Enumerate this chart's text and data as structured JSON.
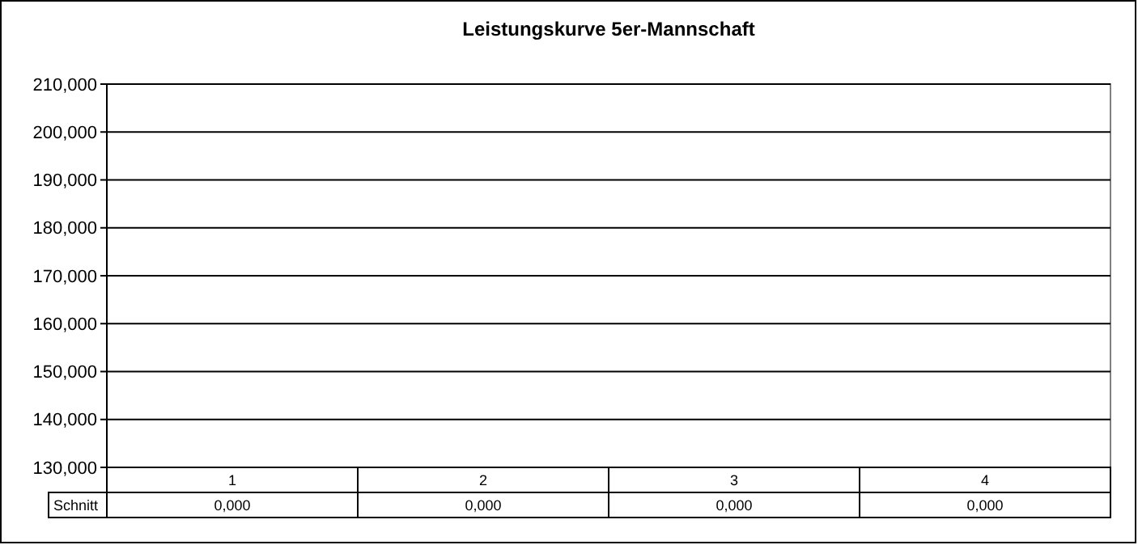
{
  "chart_data": {
    "type": "line",
    "title": "Leistungskurve 5er-Mannschaft",
    "categories": [
      "1",
      "2",
      "3",
      "4"
    ],
    "series": [
      {
        "name": "Schnitt",
        "values": [
          null,
          null,
          null,
          null
        ],
        "value_labels": [
          "0,000",
          "0,000",
          "0,000",
          "0,000"
        ]
      }
    ],
    "ylim": [
      130,
      210
    ],
    "yticks": [
      {
        "value": 130,
        "label": "130,000"
      },
      {
        "value": 140,
        "label": "140,000"
      },
      {
        "value": 150,
        "label": "150,000"
      },
      {
        "value": 160,
        "label": "160,000"
      },
      {
        "value": 170,
        "label": "170,000"
      },
      {
        "value": 180,
        "label": "180,000"
      },
      {
        "value": 190,
        "label": "190,000"
      },
      {
        "value": 200,
        "label": "200,000"
      },
      {
        "value": 210,
        "label": "210,000"
      }
    ],
    "grid": "y",
    "legend": false
  }
}
